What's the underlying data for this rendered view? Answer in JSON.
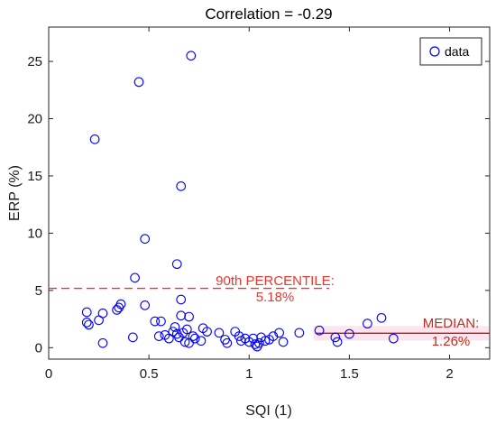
{
  "chart_data": {
    "type": "scatter",
    "title": "Correlation = -0.29",
    "xlabel": "SQI (1)",
    "ylabel": "ERP (%)",
    "xlim": [
      0,
      2.2
    ],
    "ylim": [
      -1,
      28
    ],
    "xticks": [
      0,
      0.5,
      1,
      1.5,
      2
    ],
    "xtick_labels": [
      "0",
      "0.5",
      "1",
      "1.5",
      "2"
    ],
    "yticks": [
      0,
      5,
      10,
      15,
      20,
      25
    ],
    "ytick_labels": [
      "0",
      "5",
      "10",
      "15",
      "20",
      "25"
    ],
    "grid": false,
    "legend": {
      "placement": "top-right",
      "entries": [
        "data"
      ]
    },
    "series": [
      {
        "name": "data",
        "marker": "circle-open",
        "color": "#0000ff",
        "points": [
          [
            0.23,
            18.2
          ],
          [
            0.45,
            23.2
          ],
          [
            0.71,
            25.5
          ],
          [
            0.66,
            14.1
          ],
          [
            0.48,
            9.5
          ],
          [
            0.64,
            7.3
          ],
          [
            0.43,
            6.1
          ],
          [
            0.19,
            3.1
          ],
          [
            0.27,
            3.0
          ],
          [
            0.34,
            3.3
          ],
          [
            0.36,
            3.8
          ],
          [
            0.35,
            3.5
          ],
          [
            0.48,
            3.7
          ],
          [
            0.66,
            4.2
          ],
          [
            0.66,
            2.8
          ],
          [
            0.7,
            2.7
          ],
          [
            0.56,
            2.3
          ],
          [
            0.53,
            2.3
          ],
          [
            0.19,
            2.2
          ],
          [
            0.2,
            2.0
          ],
          [
            0.25,
            2.4
          ],
          [
            0.63,
            1.8
          ],
          [
            0.62,
            1.4
          ],
          [
            0.64,
            1.2
          ],
          [
            0.67,
            1.3
          ],
          [
            0.69,
            1.6
          ],
          [
            0.72,
            1.0
          ],
          [
            0.55,
            1.0
          ],
          [
            0.58,
            1.1
          ],
          [
            0.6,
            0.8
          ],
          [
            0.65,
            0.9
          ],
          [
            0.68,
            0.5
          ],
          [
            0.7,
            0.4
          ],
          [
            0.73,
            0.8
          ],
          [
            0.77,
            1.7
          ],
          [
            0.79,
            1.4
          ],
          [
            0.85,
            1.3
          ],
          [
            0.88,
            0.7
          ],
          [
            0.89,
            0.4
          ],
          [
            0.93,
            1.4
          ],
          [
            0.96,
            0.6
          ],
          [
            0.98,
            0.8
          ],
          [
            1.0,
            0.5
          ],
          [
            1.02,
            0.8
          ],
          [
            1.03,
            0.3
          ],
          [
            1.04,
            0.1
          ],
          [
            1.06,
            0.9
          ],
          [
            1.08,
            0.6
          ],
          [
            1.1,
            0.7
          ],
          [
            1.12,
            1.0
          ],
          [
            1.15,
            1.3
          ],
          [
            1.17,
            0.5
          ],
          [
            1.25,
            1.3
          ],
          [
            0.42,
            0.9
          ],
          [
            0.27,
            0.4
          ],
          [
            0.76,
            0.6
          ],
          [
            0.95,
            1.0
          ],
          [
            1.05,
            0.4
          ],
          [
            1.35,
            1.5
          ],
          [
            1.43,
            0.9
          ],
          [
            1.44,
            0.5
          ],
          [
            1.5,
            1.2
          ],
          [
            1.59,
            2.1
          ],
          [
            1.66,
            2.6
          ],
          [
            1.72,
            0.8
          ]
        ]
      }
    ],
    "reference_lines": [
      {
        "style": "dashed",
        "color": "#e8382f",
        "value": 5.18,
        "x_from": 0,
        "x_to": 1.4,
        "label_line1": "90th PERCENTILE:",
        "label_line2": "5.18%"
      },
      {
        "style": "solid",
        "color": "#a8200f",
        "value": 1.26,
        "x_from": 1.33,
        "x_to": 2.2,
        "label_line1": "MEDIAN:",
        "label_line2": "1.26%"
      }
    ]
  }
}
